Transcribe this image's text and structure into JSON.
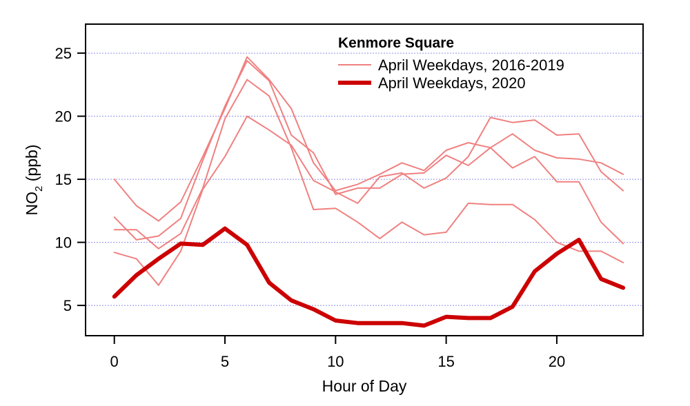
{
  "chart_data": {
    "type": "line",
    "legend": {
      "title": "Kenmore Square",
      "placement": "top-right",
      "entries": [
        {
          "label": "April Weekdays, 2016-2019",
          "color": "#f08080"
        },
        {
          "label": "April Weekdays, 2020",
          "color": "#cc0000"
        }
      ]
    },
    "xlabel": "Hour of Day",
    "ylabel": {
      "main": "NO",
      "subscript": "2",
      "suffix": " (ppb)"
    },
    "xlim": [
      -1.3,
      23.9
    ],
    "ylim": [
      2.6,
      27.3
    ],
    "x_ticks": [
      0,
      5,
      10,
      15,
      20
    ],
    "y_ticks": [
      5,
      10,
      15,
      20,
      25
    ],
    "grid": {
      "horizontal": true,
      "color": "#8c8cf0"
    },
    "x": [
      0,
      1,
      2,
      3,
      4,
      5,
      6,
      7,
      8,
      9,
      10,
      11,
      12,
      13,
      14,
      15,
      16,
      17,
      18,
      19,
      20,
      21,
      22,
      23
    ],
    "series": [
      {
        "name": "April Weekdays, 2016-2019",
        "color": "#f08080",
        "values": [
          15.0,
          12.9,
          11.7,
          13.2,
          16.8,
          20.6,
          24.7,
          22.9,
          20.6,
          16.3,
          14.1,
          14.6,
          15.4,
          16.3,
          15.7,
          17.3,
          17.9,
          17.5,
          18.6,
          17.3,
          16.7,
          16.6,
          16.3,
          15.4
        ]
      },
      {
        "name": "April Weekdays, 2016-2019",
        "color": "#f08080",
        "values": [
          12.0,
          10.2,
          10.5,
          11.9,
          16.5,
          20.8,
          24.4,
          22.8,
          18.5,
          17.1,
          13.8,
          14.3,
          14.3,
          15.4,
          15.5,
          16.9,
          16.1,
          17.5,
          15.9,
          16.8,
          14.8,
          14.8,
          11.6,
          9.9
        ]
      },
      {
        "name": "April Weekdays, 2016-2019",
        "color": "#f08080",
        "values": [
          11.0,
          11.0,
          9.5,
          10.7,
          14.3,
          19.8,
          22.9,
          21.6,
          17.5,
          12.6,
          12.7,
          11.6,
          10.3,
          11.6,
          10.6,
          10.8,
          13.1,
          13.0,
          13.0,
          11.8,
          10.0,
          9.3,
          9.3,
          8.4
        ]
      },
      {
        "name": "April Weekdays, 2016-2019",
        "color": "#f08080",
        "values": [
          9.2,
          8.7,
          6.6,
          9.3,
          14.2,
          16.8,
          20.0,
          18.9,
          17.7,
          14.9,
          14.0,
          13.1,
          15.2,
          15.5,
          14.3,
          15.1,
          16.8,
          19.9,
          19.5,
          19.7,
          18.5,
          18.6,
          15.6,
          14.1
        ]
      },
      {
        "name": "April Weekdays, 2020",
        "color": "#cc0000",
        "values": [
          5.7,
          7.4,
          8.7,
          9.9,
          9.8,
          11.1,
          9.8,
          6.8,
          5.4,
          4.7,
          3.8,
          3.6,
          3.6,
          3.6,
          3.4,
          4.1,
          4.0,
          4.0,
          4.9,
          7.7,
          9.1,
          10.2,
          7.1,
          6.4
        ]
      }
    ]
  }
}
